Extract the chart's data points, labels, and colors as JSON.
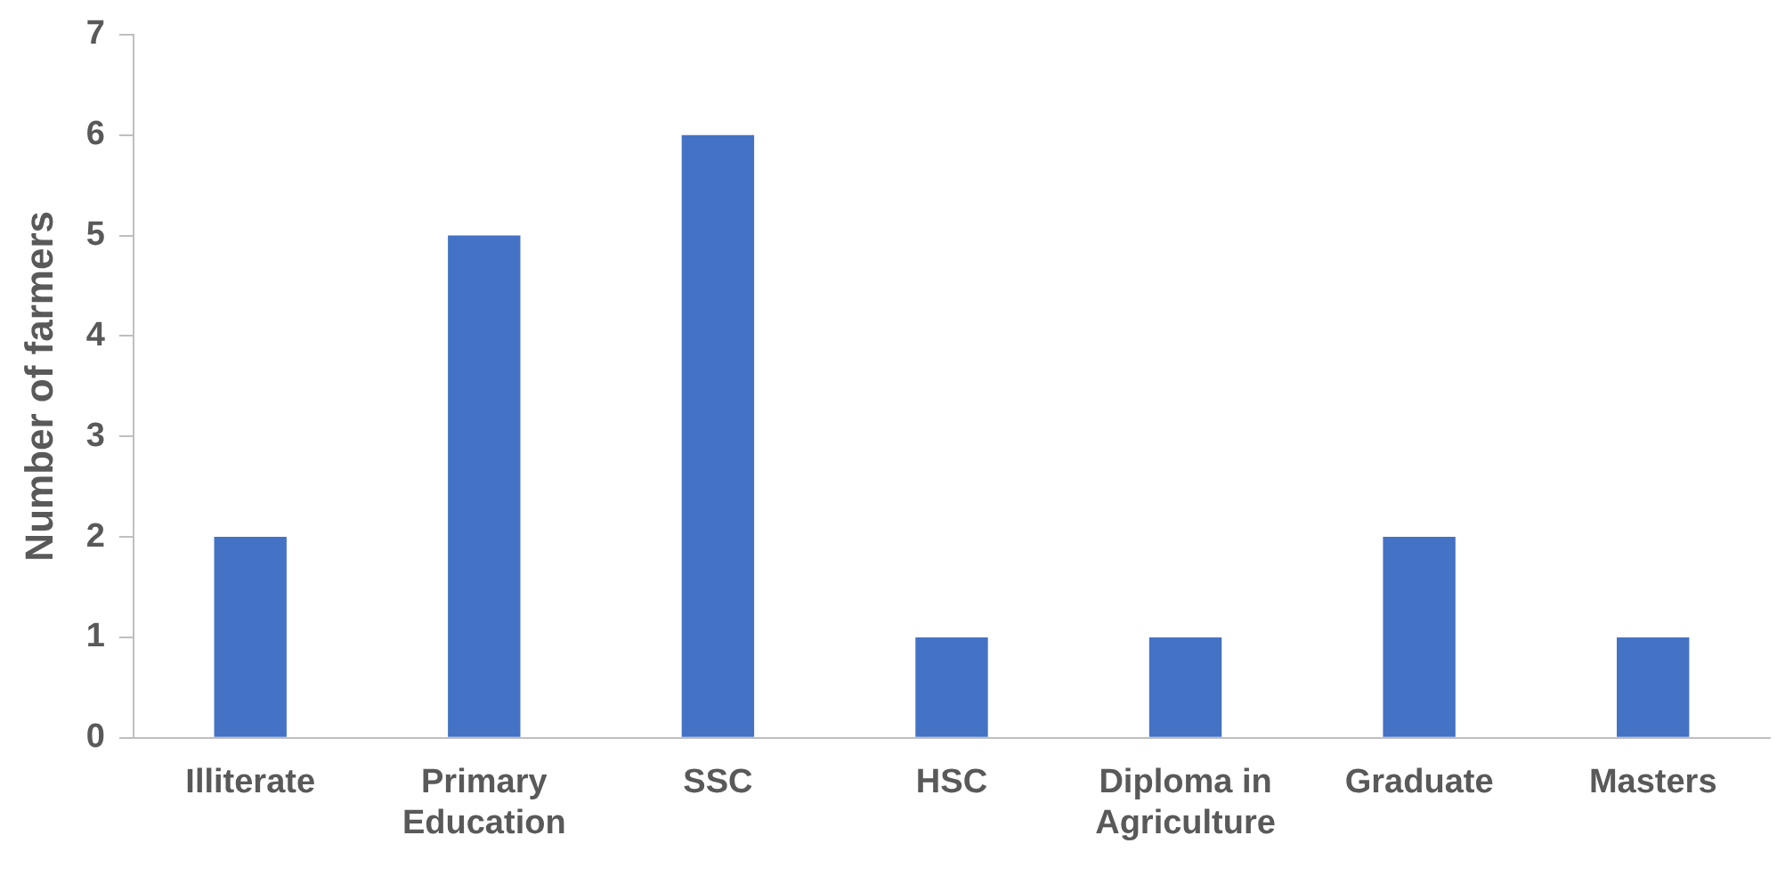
{
  "chart_data": {
    "type": "bar",
    "ylabel": "Number of farmers",
    "categories": [
      "Illiterate",
      "Primary Education",
      "SSC",
      "HSC",
      "Diploma in Agriculture",
      "Graduate",
      "Masters"
    ],
    "values": [
      2,
      5,
      6,
      1,
      1,
      2,
      1
    ],
    "color": "#4472c4",
    "ylim": [
      0,
      7
    ],
    "yticks": [
      0,
      1,
      2,
      3,
      4,
      5,
      6,
      7
    ],
    "grid": false,
    "legend": false
  }
}
